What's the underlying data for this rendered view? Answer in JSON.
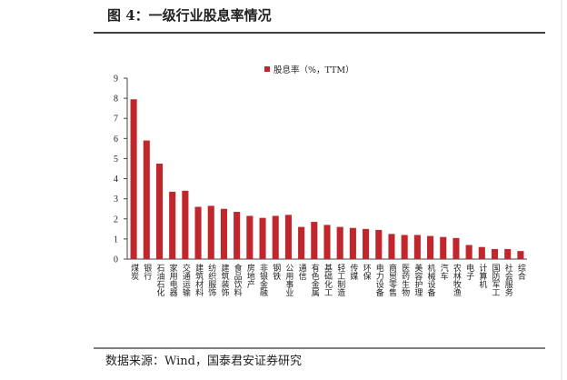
{
  "header": {
    "title": "图 4：一级行业股息率情况"
  },
  "chart_data": {
    "type": "bar",
    "categories": [
      "煤炭",
      "银行",
      "石油石化",
      "家用电器",
      "交通运输",
      "建筑材料",
      "纺织服饰",
      "建筑装饰",
      "食品饮料",
      "房地产",
      "非银金融",
      "钢铁",
      "公用事业",
      "通信",
      "有色金属",
      "基础化工",
      "轻工制造",
      "传媒",
      "环保",
      "电力设备",
      "商贸零售",
      "医药生物",
      "美容护理",
      "机械设备",
      "汽车",
      "农林牧渔",
      "电子",
      "计算机",
      "国防军工",
      "社会服务",
      "综合"
    ],
    "series": [
      {
        "name": "股息率（%，TTM）",
        "color": "#c0272d",
        "values": [
          7.95,
          5.9,
          4.75,
          3.35,
          3.4,
          2.6,
          2.65,
          2.5,
          2.35,
          2.15,
          2.05,
          2.15,
          2.2,
          1.6,
          1.85,
          1.7,
          1.6,
          1.55,
          1.5,
          1.45,
          1.25,
          1.2,
          1.2,
          1.15,
          1.1,
          1.05,
          0.7,
          0.6,
          0.5,
          0.5,
          0.4
        ]
      }
    ],
    "ylim": [
      0,
      9
    ],
    "yticks": [
      0,
      1,
      2,
      3,
      4,
      5,
      6,
      7,
      8,
      9
    ],
    "legend": "top"
  },
  "footer": {
    "source": "数据来源：Wind，国泰君安证券研究"
  }
}
